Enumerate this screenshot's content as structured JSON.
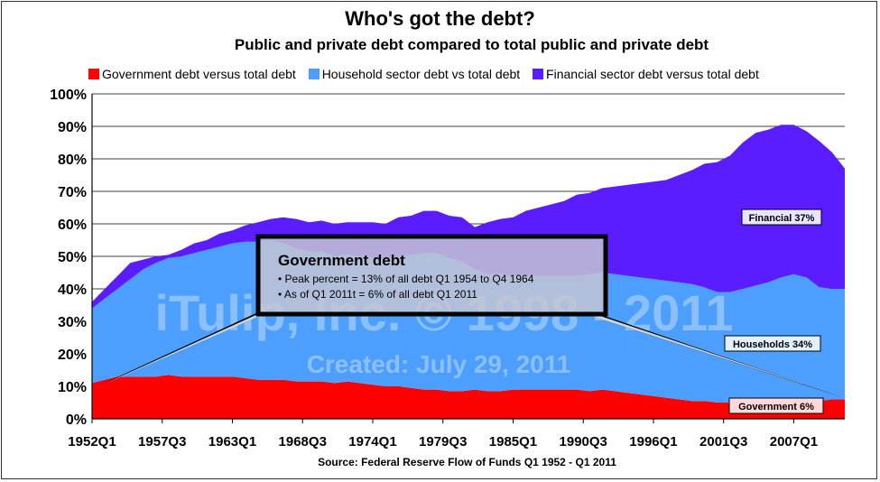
{
  "chart_data": {
    "type": "area",
    "stacked": true,
    "title": "Who's got the debt?",
    "subtitle": "Public and private debt compared to total public and private debt",
    "source": "Source: Federal Reserve Flow of Funds Q1 1952 - Q1 2011",
    "x_tick_labels": [
      "1952Q1",
      "1957Q3",
      "1963Q1",
      "1968Q3",
      "1974Q1",
      "1979Q3",
      "1985Q1",
      "1990Q3",
      "1996Q1",
      "2001Q3",
      "2007Q1"
    ],
    "y_tick_labels": [
      "0%",
      "10%",
      "20%",
      "30%",
      "40%",
      "50%",
      "60%",
      "70%",
      "80%",
      "90%",
      "100%"
    ],
    "ylim": [
      0,
      100
    ],
    "xlim": [
      1952.0,
      2011.0
    ],
    "grid": "horizontal",
    "legend_position": "top",
    "x": [
      1952.0,
      1953.0,
      1954.0,
      1955.0,
      1956.0,
      1957.0,
      1958.0,
      1959.0,
      1960.0,
      1961.0,
      1962.0,
      1963.0,
      1964.0,
      1965.0,
      1966.0,
      1967.0,
      1968.0,
      1969.0,
      1970.0,
      1971.0,
      1972.0,
      1973.0,
      1974.0,
      1975.0,
      1976.0,
      1977.0,
      1978.0,
      1979.0,
      1980.0,
      1981.0,
      1982.0,
      1983.0,
      1984.0,
      1985.0,
      1986.0,
      1987.0,
      1988.0,
      1989.0,
      1990.0,
      1991.0,
      1992.0,
      1993.0,
      1994.0,
      1995.0,
      1996.0,
      1997.0,
      1998.0,
      1999.0,
      2000.0,
      2001.0,
      2002.0,
      2003.0,
      2004.0,
      2005.0,
      2006.0,
      2007.0,
      2008.0,
      2009.0,
      2010.0,
      2011.0
    ],
    "series": [
      {
        "name": "Government debt versus total debt",
        "color": "#ff0000",
        "values": [
          11,
          12,
          13,
          13,
          13,
          13,
          13.5,
          13,
          13,
          13,
          13,
          13,
          12.5,
          12,
          12,
          12,
          11.5,
          11.5,
          11.5,
          11,
          11.5,
          11,
          10.5,
          10,
          10,
          9.5,
          9,
          9,
          8.5,
          8.5,
          9,
          8.5,
          8.5,
          9,
          9,
          9,
          9,
          9,
          9,
          8.5,
          9,
          8.5,
          8,
          7.5,
          7,
          6.5,
          6,
          5.5,
          5.5,
          5,
          5,
          5,
          5,
          5,
          5.5,
          5.5,
          5.5,
          5.5,
          6,
          6
        ]
      },
      {
        "name": "Household sector debt vs total debt",
        "color": "#4d9fff",
        "values": [
          23,
          25,
          27,
          30,
          33,
          35,
          36,
          37,
          38,
          39,
          40,
          41,
          42,
          42.5,
          43,
          42,
          41,
          40,
          40,
          39,
          39,
          39,
          39,
          39,
          40,
          41,
          42,
          42,
          41,
          40,
          37,
          36,
          36,
          35,
          35,
          35,
          35,
          35,
          35,
          36,
          36,
          36,
          36,
          36,
          36,
          36,
          36,
          36,
          35,
          34,
          34,
          35,
          36,
          37,
          38,
          39,
          38,
          35,
          34,
          34
        ]
      },
      {
        "name": "Financial sector debt versus total debt",
        "color": "#5b1cff",
        "values": [
          2,
          3,
          4,
          5,
          3,
          2,
          1,
          2,
          3,
          3,
          4,
          4,
          5,
          6,
          6.5,
          8,
          9,
          9,
          9.5,
          10,
          10,
          10.5,
          11,
          11,
          12,
          12,
          13,
          13,
          13,
          13.5,
          13,
          16,
          17,
          18,
          20,
          21,
          22,
          23,
          25,
          25,
          26,
          27,
          28,
          29,
          30,
          31,
          33,
          35,
          38,
          40,
          42,
          45,
          47,
          47,
          47,
          46,
          45,
          45,
          42,
          37
        ]
      }
    ],
    "annotations": [
      {
        "text": "Financial 37%"
      },
      {
        "text": "Households 34%"
      },
      {
        "text": "Government 6%"
      }
    ],
    "callout": {
      "title": "Government debt",
      "line1": "• Peak percent = 13% of all debt Q1 1954 to Q4 1964",
      "line2": "• As of Q1 2011t = 6% of all debt Q1 2011"
    },
    "watermark": {
      "line1": "iTulip, Inc. © 1998 - 2011",
      "line2": "Created: July 29, 2011"
    }
  }
}
